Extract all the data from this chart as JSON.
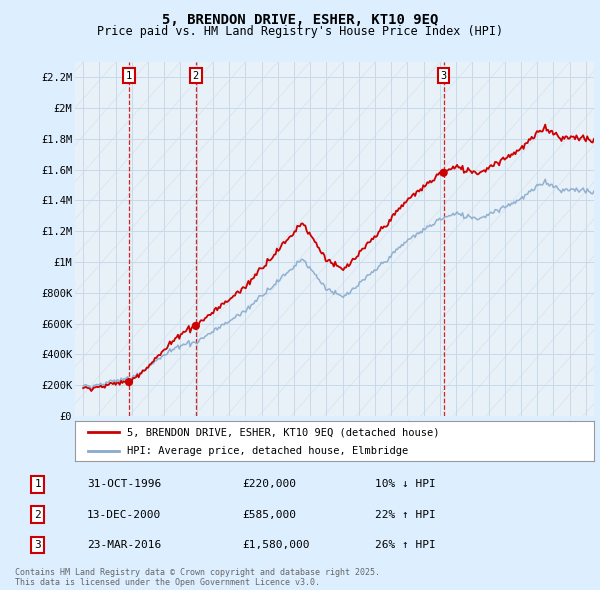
{
  "title": "5, BRENDON DRIVE, ESHER, KT10 9EQ",
  "subtitle": "Price paid vs. HM Land Registry's House Price Index (HPI)",
  "ylim": [
    0,
    2300000
  ],
  "yticks": [
    0,
    200000,
    400000,
    600000,
    800000,
    1000000,
    1200000,
    1400000,
    1600000,
    1800000,
    2000000,
    2200000
  ],
  "ytick_labels": [
    "£0",
    "£200K",
    "£400K",
    "£600K",
    "£800K",
    "£1M",
    "£1.2M",
    "£1.4M",
    "£1.6M",
    "£1.8M",
    "£2M",
    "£2.2M"
  ],
  "sale1_year": 1996.83,
  "sale1_price": 220000,
  "sale1_label": "1",
  "sale1_date": "31-OCT-1996",
  "sale1_price_str": "£220,000",
  "sale1_hpi_diff": "10% ↓ HPI",
  "sale2_year": 2000.95,
  "sale2_price": 585000,
  "sale2_label": "2",
  "sale2_date": "13-DEC-2000",
  "sale2_price_str": "£585,000",
  "sale2_hpi_diff": "22% ↑ HPI",
  "sale3_year": 2016.23,
  "sale3_price": 1580000,
  "sale3_label": "3",
  "sale3_date": "23-MAR-2016",
  "sale3_price_str": "£1,580,000",
  "sale3_hpi_diff": "26% ↑ HPI",
  "legend_sale_label": "5, BRENDON DRIVE, ESHER, KT10 9EQ (detached house)",
  "legend_hpi_label": "HPI: Average price, detached house, Elmbridge",
  "sale_color": "#cc0000",
  "hpi_color": "#88aacc",
  "vline_color": "#cc0000",
  "grid_color": "#c8daea",
  "bg_color": "#ddeeff",
  "plot_bg": "#e8f0f8",
  "footnote": "Contains HM Land Registry data © Crown copyright and database right 2025.\nThis data is licensed under the Open Government Licence v3.0.",
  "xmin": 1993.5,
  "xmax": 2025.5,
  "xtick_years": [
    1994,
    1995,
    1996,
    1997,
    1998,
    1999,
    2000,
    2001,
    2002,
    2003,
    2004,
    2005,
    2006,
    2007,
    2008,
    2009,
    2010,
    2011,
    2012,
    2013,
    2014,
    2015,
    2016,
    2017,
    2018,
    2019,
    2020,
    2021,
    2022,
    2023,
    2024,
    2025
  ]
}
